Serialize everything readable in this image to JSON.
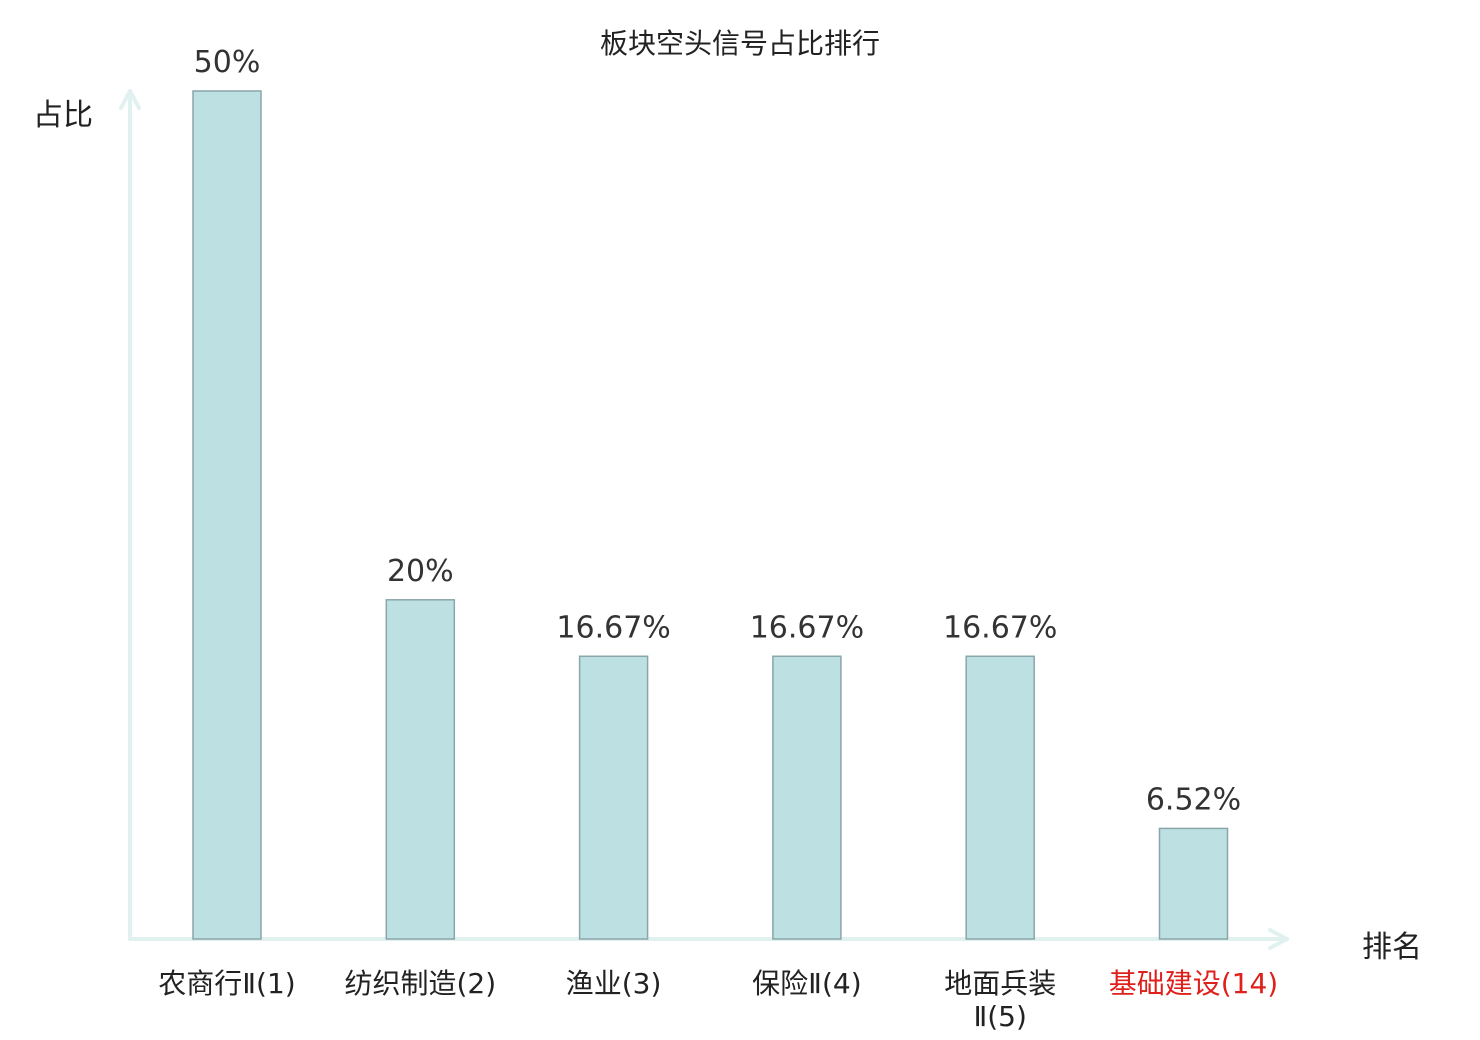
{
  "chart_data": {
    "type": "bar",
    "title": "板块空头信号占比排行",
    "ylabel": "占比",
    "xlabel": "排名",
    "categories": [
      "农商行Ⅱ(1)",
      "纺织制造(2)",
      "渔业(3)",
      "保险Ⅱ(4)",
      "地面兵装Ⅱ(5)",
      "基础建设(14)"
    ],
    "category_lines": [
      [
        "农商行Ⅱ(1)"
      ],
      [
        "纺织制造(2)"
      ],
      [
        "渔业(3)"
      ],
      [
        "保险Ⅱ(4)"
      ],
      [
        "地面兵装",
        "Ⅱ(5)"
      ],
      [
        "基础建设(14)"
      ]
    ],
    "values": [
      50,
      20,
      16.67,
      16.67,
      16.67,
      6.52
    ],
    "value_labels": [
      "50%",
      "20%",
      "16.67%",
      "16.67%",
      "16.67%",
      "6.52%"
    ],
    "highlight_index": 5,
    "ylim": [
      0,
      50
    ],
    "grid": false,
    "legend": "none",
    "colors": {
      "bar_fill": "#bde0e3",
      "bar_stroke": "#8aa6aa",
      "axis": "#e0f1ef",
      "label_text": "#222222",
      "value_text": "#333333",
      "highlight_text": "#e0201b"
    }
  }
}
